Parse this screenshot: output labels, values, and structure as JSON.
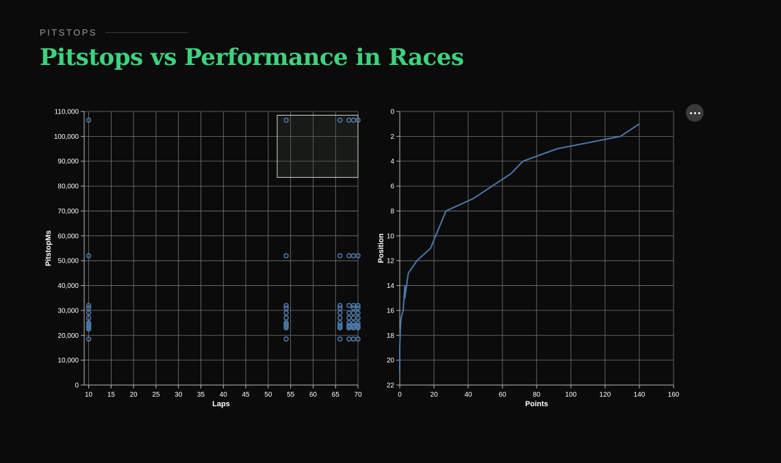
{
  "header": {
    "eyebrow": "PITSTOPS",
    "title": "Pitstops vs Performance in Races"
  },
  "menu_icon": "more-horizontal-icon",
  "colors": {
    "accent": "#3fd17f",
    "mark": "#4c78a8",
    "grid": "#7a7a7a"
  },
  "chart_data": [
    {
      "type": "scatter",
      "xlabel": "Laps",
      "ylabel": "PitstopMs",
      "xlim": [
        9,
        70
      ],
      "ylim": [
        0,
        110000
      ],
      "xticks": [
        10,
        15,
        20,
        25,
        30,
        35,
        40,
        45,
        50,
        55,
        60,
        65,
        70
      ],
      "yticks": [
        0,
        10000,
        20000,
        30000,
        40000,
        50000,
        60000,
        70000,
        80000,
        90000,
        100000,
        110000
      ],
      "grid": true,
      "selection_brush": {
        "x": [
          52,
          70
        ],
        "y": [
          83500,
          108500
        ]
      },
      "points": [
        {
          "x": 10,
          "y": 106500
        },
        {
          "x": 10,
          "y": 52000
        },
        {
          "x": 10,
          "y": 32000
        },
        {
          "x": 10,
          "y": 31000
        },
        {
          "x": 10,
          "y": 29000
        },
        {
          "x": 10,
          "y": 27000
        },
        {
          "x": 10,
          "y": 25000
        },
        {
          "x": 10,
          "y": 24500
        },
        {
          "x": 10,
          "y": 24000
        },
        {
          "x": 10,
          "y": 23500
        },
        {
          "x": 10,
          "y": 23000
        },
        {
          "x": 10,
          "y": 22500
        },
        {
          "x": 10,
          "y": 18500
        },
        {
          "x": 54,
          "y": 106500
        },
        {
          "x": 54,
          "y": 52000
        },
        {
          "x": 54,
          "y": 32000
        },
        {
          "x": 54,
          "y": 31000
        },
        {
          "x": 54,
          "y": 29000
        },
        {
          "x": 54,
          "y": 27000
        },
        {
          "x": 54,
          "y": 25000
        },
        {
          "x": 54,
          "y": 24500
        },
        {
          "x": 54,
          "y": 24000
        },
        {
          "x": 54,
          "y": 23500
        },
        {
          "x": 54,
          "y": 23000
        },
        {
          "x": 54,
          "y": 18500
        },
        {
          "x": 66,
          "y": 106500
        },
        {
          "x": 66,
          "y": 52000
        },
        {
          "x": 66,
          "y": 32000
        },
        {
          "x": 66,
          "y": 31000
        },
        {
          "x": 66,
          "y": 29000
        },
        {
          "x": 66,
          "y": 27000
        },
        {
          "x": 66,
          "y": 25000
        },
        {
          "x": 66,
          "y": 24000
        },
        {
          "x": 66,
          "y": 23500
        },
        {
          "x": 66,
          "y": 23000
        },
        {
          "x": 66,
          "y": 18500
        },
        {
          "x": 68,
          "y": 106500
        },
        {
          "x": 68,
          "y": 52000
        },
        {
          "x": 68,
          "y": 32000
        },
        {
          "x": 68,
          "y": 29000
        },
        {
          "x": 68,
          "y": 27000
        },
        {
          "x": 68,
          "y": 25000
        },
        {
          "x": 68,
          "y": 24000
        },
        {
          "x": 68,
          "y": 23500
        },
        {
          "x": 68,
          "y": 23000
        },
        {
          "x": 68,
          "y": 18500
        },
        {
          "x": 69,
          "y": 106500
        },
        {
          "x": 69,
          "y": 52000
        },
        {
          "x": 69,
          "y": 32000
        },
        {
          "x": 69,
          "y": 31000
        },
        {
          "x": 69,
          "y": 29000
        },
        {
          "x": 69,
          "y": 27000
        },
        {
          "x": 69,
          "y": 25000
        },
        {
          "x": 69,
          "y": 24000
        },
        {
          "x": 69,
          "y": 23500
        },
        {
          "x": 69,
          "y": 23000
        },
        {
          "x": 69,
          "y": 18500
        },
        {
          "x": 70,
          "y": 106500
        },
        {
          "x": 70,
          "y": 52000
        },
        {
          "x": 70,
          "y": 32000
        },
        {
          "x": 70,
          "y": 31000
        },
        {
          "x": 70,
          "y": 29000
        },
        {
          "x": 70,
          "y": 27000
        },
        {
          "x": 70,
          "y": 25000
        },
        {
          "x": 70,
          "y": 24000
        },
        {
          "x": 70,
          "y": 23500
        },
        {
          "x": 70,
          "y": 23000
        },
        {
          "x": 70,
          "y": 18500
        }
      ]
    },
    {
      "type": "line",
      "xlabel": "Points",
      "ylabel": "Position",
      "xlim": [
        0,
        160
      ],
      "ylim": [
        0,
        22
      ],
      "y_reversed": true,
      "xticks": [
        0,
        20,
        40,
        60,
        80,
        100,
        120,
        140,
        160
      ],
      "yticks": [
        0,
        2,
        4,
        6,
        8,
        10,
        12,
        14,
        16,
        18,
        20,
        22
      ],
      "grid": true,
      "points": [
        {
          "x": 0,
          "y": 21
        },
        {
          "x": 0,
          "y": 19
        },
        {
          "x": 0.5,
          "y": 17
        },
        {
          "x": 1,
          "y": 16.5
        },
        {
          "x": 2,
          "y": 16
        },
        {
          "x": 3,
          "y": 14
        },
        {
          "x": 3,
          "y": 15
        },
        {
          "x": 5,
          "y": 13
        },
        {
          "x": 10,
          "y": 12
        },
        {
          "x": 18,
          "y": 11
        },
        {
          "x": 27,
          "y": 8
        },
        {
          "x": 43,
          "y": 7
        },
        {
          "x": 65,
          "y": 5
        },
        {
          "x": 72,
          "y": 4
        },
        {
          "x": 92,
          "y": 3
        },
        {
          "x": 129,
          "y": 2
        },
        {
          "x": 140,
          "y": 1
        }
      ]
    }
  ]
}
